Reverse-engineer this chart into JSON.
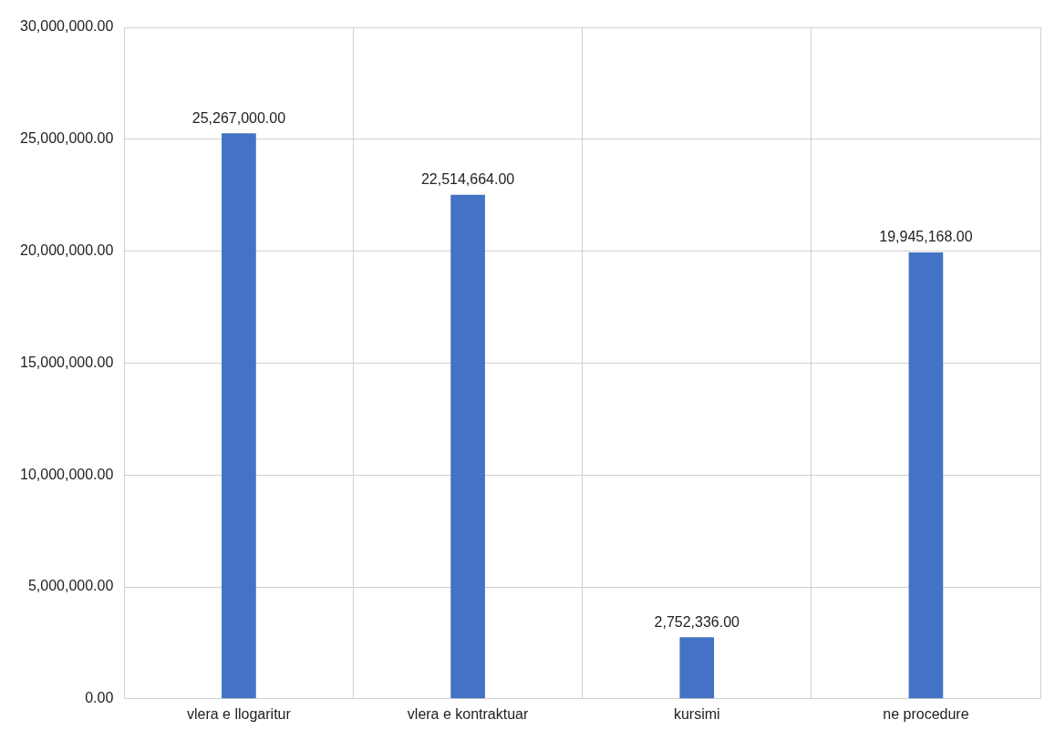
{
  "chart_data": {
    "type": "bar",
    "categories": [
      "vlera e llogaritur",
      "vlera e kontraktuar",
      "kursimi",
      "ne procedure"
    ],
    "values": [
      25267000,
      22514664,
      2752336,
      19945168
    ],
    "value_labels": [
      "25,267,000.00",
      "22,514,664.00",
      "2,752,336.00",
      "19,945,168.00"
    ],
    "color": "#4472c4",
    "ylim": [
      0,
      30000000
    ],
    "yticks": [
      {
        "value": 0,
        "label": "0.00"
      },
      {
        "value": 5000000,
        "label": "5,000,000.00"
      },
      {
        "value": 10000000,
        "label": "10,000,000.00"
      },
      {
        "value": 15000000,
        "label": "15,000,000.00"
      },
      {
        "value": 20000000,
        "label": "20,000,000.00"
      },
      {
        "value": 25000000,
        "label": "25,000,000.00"
      },
      {
        "value": 30000000,
        "label": "30,000,000.00"
      }
    ],
    "grid": true,
    "legend": false
  }
}
